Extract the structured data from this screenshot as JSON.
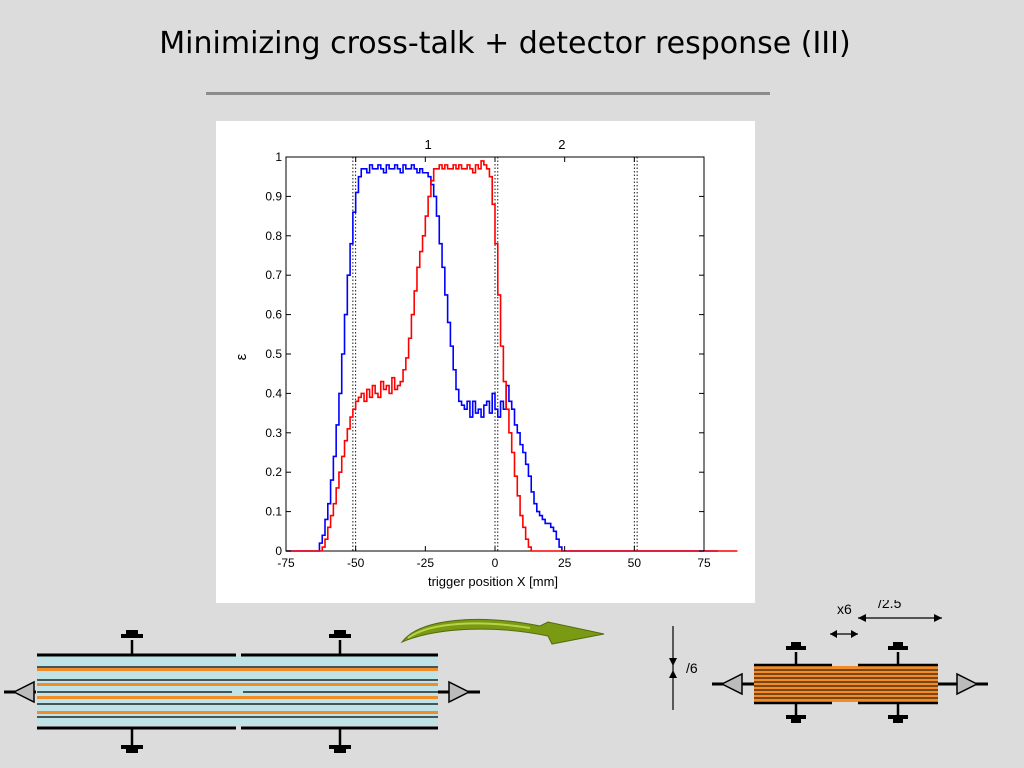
{
  "slide": {
    "title": "Minimizing cross-talk + detector response (III)"
  },
  "chart_data": {
    "type": "line",
    "xlabel": "trigger position X [mm]",
    "ylabel": "ε",
    "xlim": [
      -75,
      75
    ],
    "ylim": [
      0,
      1
    ],
    "x_ticks": [
      "-75",
      "-50",
      "-25",
      "0",
      "25",
      "50",
      "75"
    ],
    "y_ticks": [
      "0",
      "0.1",
      "0.2",
      "0.3",
      "0.4",
      "0.5",
      "0.6",
      "0.7",
      "0.8",
      "0.9",
      "1"
    ],
    "top_labels": [
      {
        "text": "1",
        "x": -24
      },
      {
        "text": "2",
        "x": 24
      }
    ],
    "reference_lines_x": [
      -51,
      -50,
      0,
      1,
      50,
      51
    ],
    "grid": false,
    "series": [
      {
        "color": "#0000ff",
        "step": 1,
        "x_start": -75,
        "values": [
          0,
          0,
          0,
          0,
          0,
          0,
          0,
          0,
          0,
          0,
          0,
          0,
          0.02,
          0.04,
          0.08,
          0.12,
          0.18,
          0.24,
          0.32,
          0.4,
          0.5,
          0.6,
          0.7,
          0.78,
          0.86,
          0.91,
          0.95,
          0.97,
          0.97,
          0.96,
          0.98,
          0.97,
          0.97,
          0.98,
          0.97,
          0.96,
          0.98,
          0.97,
          0.97,
          0.98,
          0.97,
          0.96,
          0.98,
          0.97,
          0.97,
          0.98,
          0.97,
          0.96,
          0.97,
          0.96,
          0.96,
          0.95,
          0.93,
          0.9,
          0.85,
          0.78,
          0.72,
          0.65,
          0.58,
          0.52,
          0.46,
          0.41,
          0.38,
          0.37,
          0.36,
          0.38,
          0.34,
          0.38,
          0.35,
          0.36,
          0.34,
          0.37,
          0.38,
          0.35,
          0.4,
          0.36,
          0.34,
          0.38,
          0.36,
          0.42,
          0.38,
          0.36,
          0.32,
          0.3,
          0.27,
          0.25,
          0.22,
          0.19,
          0.15,
          0.12,
          0.1,
          0.09,
          0.08,
          0.07,
          0.07,
          0.06,
          0.05,
          0.03,
          0.01,
          0,
          0,
          0,
          0,
          0,
          0,
          0,
          0,
          0,
          0,
          0,
          0,
          0,
          0,
          0,
          0,
          0,
          0,
          0,
          0,
          0,
          0,
          0,
          0,
          0,
          0,
          0,
          0,
          0,
          0,
          0,
          0,
          0,
          0,
          0,
          0,
          0,
          0,
          0,
          0,
          0,
          0,
          0,
          0,
          0,
          0,
          0,
          0,
          0,
          0,
          0,
          0,
          0,
          0,
          0,
          0
        ]
      },
      {
        "color": "#ff0000",
        "step": 1,
        "x_start": -75,
        "values": [
          0,
          0,
          0,
          0,
          0,
          0,
          0,
          0,
          0,
          0,
          0,
          0,
          0,
          0.01,
          0.03,
          0.06,
          0.09,
          0.12,
          0.16,
          0.2,
          0.24,
          0.28,
          0.31,
          0.34,
          0.36,
          0.38,
          0.39,
          0.4,
          0.38,
          0.41,
          0.39,
          0.42,
          0.4,
          0.39,
          0.43,
          0.41,
          0.42,
          0.4,
          0.44,
          0.41,
          0.42,
          0.43,
          0.46,
          0.49,
          0.54,
          0.6,
          0.66,
          0.72,
          0.76,
          0.8,
          0.85,
          0.9,
          0.94,
          0.97,
          0.97,
          0.98,
          0.97,
          0.98,
          0.97,
          0.97,
          0.98,
          0.97,
          0.98,
          0.97,
          0.97,
          0.98,
          0.97,
          0.96,
          0.98,
          0.97,
          0.99,
          0.98,
          0.97,
          0.95,
          0.88,
          0.78,
          0.65,
          0.52,
          0.43,
          0.36,
          0.3,
          0.25,
          0.19,
          0.14,
          0.09,
          0.06,
          0.03,
          0.01,
          0,
          0,
          0,
          0,
          0,
          0,
          0,
          0,
          0,
          0,
          0,
          0,
          0,
          0,
          0,
          0,
          0,
          0,
          0,
          0,
          0,
          0,
          0,
          0,
          0,
          0,
          0,
          0,
          0,
          0,
          0,
          0,
          0,
          0,
          0,
          0,
          0,
          0,
          0,
          0,
          0,
          0,
          0,
          0,
          0,
          0,
          0,
          0,
          0,
          0,
          0,
          0,
          0,
          0,
          0,
          0,
          0,
          0,
          0,
          0,
          0,
          0,
          0,
          0,
          0,
          0,
          0,
          0,
          0,
          0,
          0,
          0,
          0,
          0
        ]
      }
    ]
  },
  "diagram": {
    "scale_label_1": "x6",
    "scale_label_2": "/2.5",
    "scale_label_3": "/6",
    "colors": {
      "layer_blue": "#bfe3e6",
      "layer_orange": "#f28c28",
      "arrow_green": "#7a9a14"
    }
  }
}
